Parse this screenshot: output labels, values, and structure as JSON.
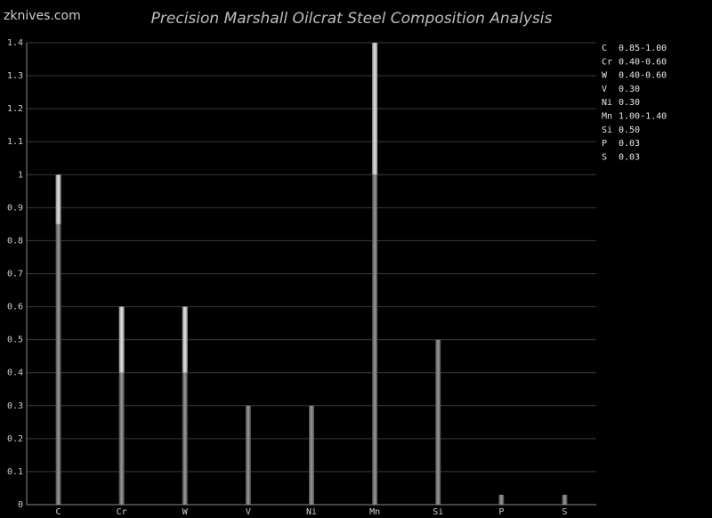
{
  "watermark": "zknives.com",
  "chart_data": {
    "type": "bar",
    "title": "Precision Marshall Oilcrat Steel Composition Analysis",
    "xlabel": "",
    "ylabel": "",
    "ylim": [
      0,
      1.4
    ],
    "yticks": [
      "0",
      "0.1",
      "0.2",
      "0.3",
      "0.4",
      "0.5",
      "0.6",
      "0.7",
      "0.8",
      "0.9",
      "1",
      "1.1",
      "1.2",
      "1.3",
      "1.4"
    ],
    "grid": true,
    "legend_position": "right",
    "categories": [
      "C",
      "Cr",
      "W",
      "V",
      "Ni",
      "Mn",
      "Si",
      "P",
      "S"
    ],
    "min_values": [
      0.85,
      0.4,
      0.4,
      0.3,
      0.3,
      1.0,
      0.5,
      0.03,
      0.03
    ],
    "max_values": [
      1.0,
      0.6,
      0.6,
      0.3,
      0.3,
      1.4,
      0.5,
      0.03,
      0.03
    ],
    "legend": [
      {
        "element": "C",
        "value": "0.85-1.00"
      },
      {
        "element": "Cr",
        "value": "0.40-0.60"
      },
      {
        "element": "W",
        "value": "0.40-0.60"
      },
      {
        "element": "V",
        "value": "0.30"
      },
      {
        "element": "Ni",
        "value": "0.30"
      },
      {
        "element": "Mn",
        "value": "1.00-1.40"
      },
      {
        "element": "Si",
        "value": "0.50"
      },
      {
        "element": "P",
        "value": "0.03"
      },
      {
        "element": "S",
        "value": "0.03"
      }
    ],
    "colors": {
      "bar_base": "#7a7a7a",
      "bar_range": "#c4c4c4",
      "grid": "#3a3a3a",
      "axis": "#8a8a8a"
    }
  }
}
